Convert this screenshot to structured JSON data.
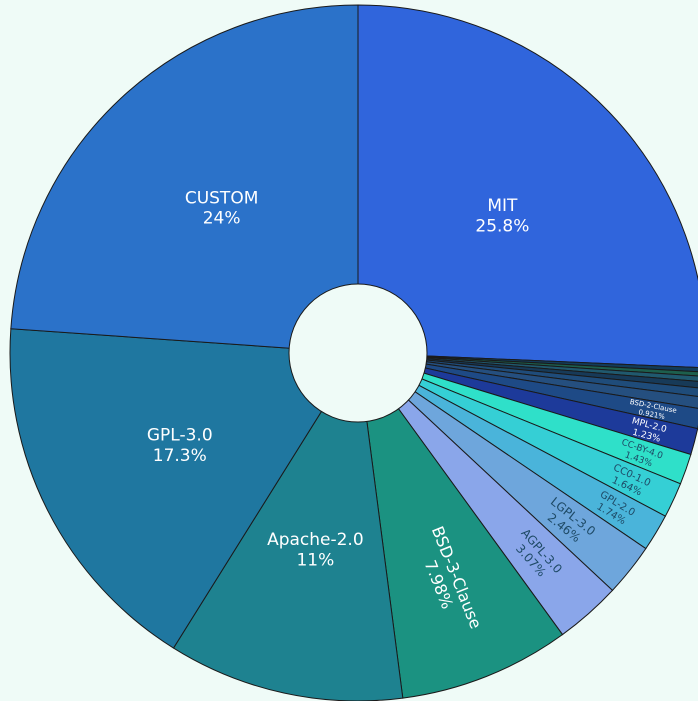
{
  "chart_data": {
    "type": "pie",
    "donut": true,
    "start_angle_deg": 0,
    "direction": "clockwise",
    "background": "#effbf7",
    "slices": [
      {
        "label": "MIT",
        "value": 25.8,
        "value_label": "25.8%",
        "color": "#3065dc",
        "label_color": "#ffffff"
      },
      {
        "label": "",
        "value": 0.2,
        "value_label": "",
        "color": "#123c5a",
        "label_color": "#ffffff"
      },
      {
        "label": "",
        "value": 0.2,
        "value_label": "",
        "color": "#1d5f4d",
        "label_color": "#ffffff"
      },
      {
        "label": "",
        "value": 0.25,
        "value_label": "",
        "color": "#20596e",
        "label_color": "#ffffff"
      },
      {
        "label": "",
        "value": 0.3,
        "value_label": "",
        "color": "#173a58",
        "label_color": "#ffffff"
      },
      {
        "label": "",
        "value": 0.4,
        "value_label": "",
        "color": "#1f4c7a",
        "label_color": "#ffffff"
      },
      {
        "label": "",
        "value": 0.55,
        "value_label": "",
        "color": "#254f7f",
        "label_color": "#ffffff"
      },
      {
        "label": "BSD-2-Clause",
        "value": 0.921,
        "value_label": "0.921%",
        "color": "#1e4a86",
        "label_color": "#ffffff"
      },
      {
        "label": "MPL-2.0",
        "value": 1.23,
        "value_label": "1.23%",
        "color": "#1d3a9a",
        "label_color": "#ffffff"
      },
      {
        "label": "CC-BY-4.0",
        "value": 1.43,
        "value_label": "1.43%",
        "color": "#2fe0c9",
        "label_color": "#1e4a66"
      },
      {
        "label": "CC0-1.0",
        "value": 1.64,
        "value_label": "1.64%",
        "color": "#35cfd5",
        "label_color": "#1e4a66"
      },
      {
        "label": "GPL-2.0",
        "value": 1.74,
        "value_label": "1.74%",
        "color": "#4ab4da",
        "label_color": "#1e4a66"
      },
      {
        "label": "LGPL-3.0",
        "value": 2.46,
        "value_label": "2.46%",
        "color": "#6ea6dc",
        "label_color": "#1e4a66"
      },
      {
        "label": "AGPL-3.0",
        "value": 3.07,
        "value_label": "3.07%",
        "color": "#8aa6ea",
        "label_color": "#1e4a66"
      },
      {
        "label": "BSD-3-Clause",
        "value": 7.98,
        "value_label": "7.98%",
        "color": "#1b9281",
        "label_color": "#ffffff"
      },
      {
        "label": "Apache-2.0",
        "value": 11,
        "value_label": "11%",
        "color": "#1e8290",
        "label_color": "#ffffff"
      },
      {
        "label": "GPL-3.0",
        "value": 17.3,
        "value_label": "17.3%",
        "color": "#1f77a0",
        "label_color": "#ffffff"
      },
      {
        "label": "CUSTOM",
        "value": 24,
        "value_label": "24%",
        "color": "#2b72c9",
        "label_color": "#ffffff"
      }
    ]
  }
}
